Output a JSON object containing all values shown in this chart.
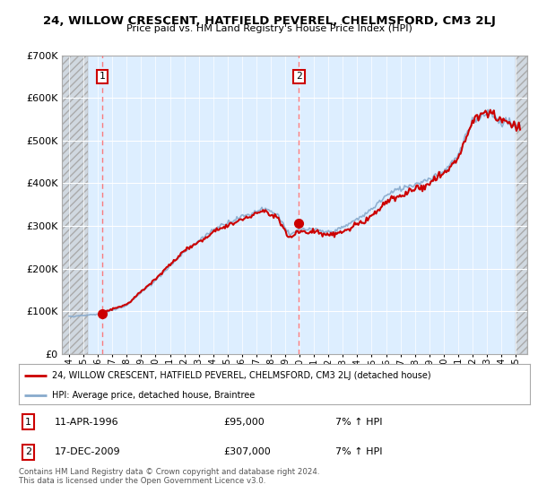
{
  "title": "24, WILLOW CRESCENT, HATFIELD PEVEREL, CHELMSFORD, CM3 2LJ",
  "subtitle": "Price paid vs. HM Land Registry's House Price Index (HPI)",
  "sale1_date": 1996.28,
  "sale1_price": 95000,
  "sale2_date": 2009.96,
  "sale2_price": 307000,
  "legend_line1": "24, WILLOW CRESCENT, HATFIELD PEVEREL, CHELMSFORD, CM3 2LJ (detached house)",
  "legend_line2": "HPI: Average price, detached house, Braintree",
  "footer": "Contains HM Land Registry data © Crown copyright and database right 2024.\nThis data is licensed under the Open Government Licence v3.0.",
  "ylim": [
    0,
    700000
  ],
  "yticks": [
    0,
    100000,
    200000,
    300000,
    400000,
    500000,
    600000,
    700000
  ],
  "xlim_start": 1993.5,
  "xlim_end": 2025.8,
  "price_color": "#cc0000",
  "hpi_color": "#88aacc",
  "bg_color": "#ddeeff",
  "grid_color": "#ffffff",
  "dashed_line_color": "#ff6666",
  "hatch_bg": "#d0d8e0"
}
